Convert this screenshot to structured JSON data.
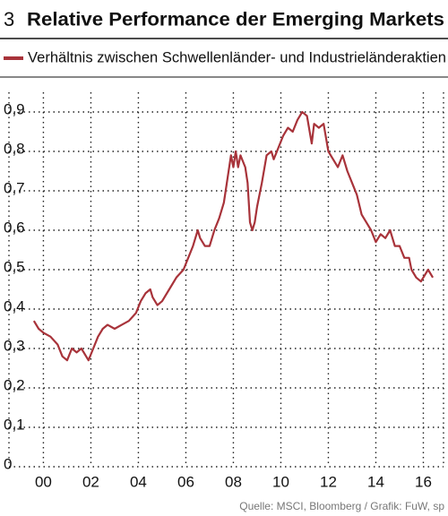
{
  "chart_data": {
    "type": "line",
    "number": "3",
    "title": "Relative Performance der Emerging Markets",
    "source": "Quelle: MSCI, Bloomberg / Grafik: FuW, sp",
    "grid": true,
    "xlim": [
      1998.55,
      2016.85
    ],
    "ylim": [
      0,
      0.95
    ],
    "xticks": [
      {
        "value": 2000,
        "label": "00"
      },
      {
        "value": 2002,
        "label": "02"
      },
      {
        "value": 2004,
        "label": "04"
      },
      {
        "value": 2006,
        "label": "06"
      },
      {
        "value": 2008,
        "label": "08"
      },
      {
        "value": 2010,
        "label": "10"
      },
      {
        "value": 2012,
        "label": "12"
      },
      {
        "value": 2014,
        "label": "14"
      },
      {
        "value": 2016,
        "label": "16"
      }
    ],
    "yticks": [
      0,
      {
        "value": 0.1,
        "label": "0,1"
      },
      {
        "value": 0.2,
        "label": "0,2"
      },
      {
        "value": 0.3,
        "label": "0,3"
      },
      {
        "value": 0.4,
        "label": "0,4"
      },
      {
        "value": 0.5,
        "label": "0,5"
      },
      {
        "value": 0.6,
        "label": "0,6"
      },
      {
        "value": 0.7,
        "label": "0,7"
      },
      {
        "value": 0.8,
        "label": "0,8"
      },
      {
        "value": 0.9,
        "label": "0,9"
      }
    ],
    "x": [
      1999.6,
      1999.8,
      2000.0,
      2000.3,
      2000.6,
      2000.8,
      2001.0,
      2001.2,
      2001.4,
      2001.6,
      2001.8,
      2001.9,
      2002.1,
      2002.3,
      2002.5,
      2002.7,
      2003.0,
      2003.3,
      2003.6,
      2003.9,
      2004.1,
      2004.3,
      2004.5,
      2004.6,
      2004.8,
      2005.0,
      2005.3,
      2005.6,
      2005.9,
      2006.1,
      2006.3,
      2006.5,
      2006.6,
      2006.8,
      2007.0,
      2007.2,
      2007.4,
      2007.6,
      2007.8,
      2007.9,
      2008.0,
      2008.1,
      2008.2,
      2008.3,
      2008.5,
      2008.6,
      2008.7,
      2008.8,
      2008.9,
      2009.0,
      2009.2,
      2009.4,
      2009.6,
      2009.7,
      2009.9,
      2010.1,
      2010.3,
      2010.5,
      2010.7,
      2010.9,
      2011.1,
      2011.3,
      2011.4,
      2011.6,
      2011.8,
      2012.0,
      2012.2,
      2012.4,
      2012.6,
      2012.8,
      2013.0,
      2013.2,
      2013.4,
      2013.6,
      2013.8,
      2014.0,
      2014.2,
      2014.4,
      2014.6,
      2014.8,
      2015.0,
      2015.2,
      2015.4,
      2015.5,
      2015.7,
      2015.9,
      2016.0,
      2016.2,
      2016.4
    ],
    "series": [
      {
        "name": "Verhältnis zwischen Schwellenländer- und Industrieländeraktien",
        "color": "#a8333a",
        "values": [
          0.37,
          0.35,
          0.34,
          0.33,
          0.31,
          0.28,
          0.27,
          0.3,
          0.29,
          0.3,
          0.28,
          0.27,
          0.3,
          0.33,
          0.35,
          0.36,
          0.35,
          0.36,
          0.37,
          0.39,
          0.42,
          0.44,
          0.45,
          0.43,
          0.41,
          0.42,
          0.45,
          0.48,
          0.5,
          0.53,
          0.56,
          0.6,
          0.58,
          0.56,
          0.56,
          0.6,
          0.63,
          0.67,
          0.75,
          0.79,
          0.76,
          0.8,
          0.76,
          0.79,
          0.76,
          0.72,
          0.62,
          0.6,
          0.62,
          0.66,
          0.72,
          0.79,
          0.8,
          0.78,
          0.81,
          0.84,
          0.86,
          0.85,
          0.88,
          0.9,
          0.89,
          0.82,
          0.87,
          0.86,
          0.87,
          0.8,
          0.78,
          0.76,
          0.79,
          0.75,
          0.72,
          0.69,
          0.64,
          0.62,
          0.6,
          0.57,
          0.59,
          0.58,
          0.6,
          0.56,
          0.56,
          0.53,
          0.53,
          0.5,
          0.48,
          0.47,
          0.48,
          0.5,
          0.48
        ]
      }
    ]
  }
}
